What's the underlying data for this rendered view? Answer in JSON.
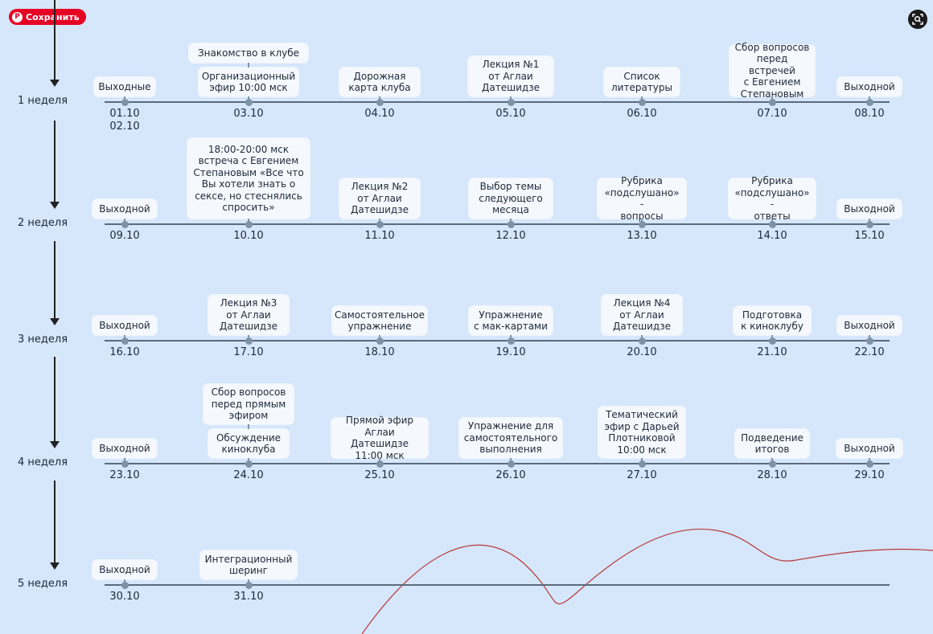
{
  "toolbar": {
    "save_label": "Сохранить",
    "save_icon": "pinterest-icon",
    "lens_icon": "visual-search-icon"
  },
  "colors": {
    "background": "#d6e6fb",
    "card": "#f5f8fd",
    "line": "#5b6b7d",
    "dot": "#7f93a7",
    "save_button": "#e60023",
    "scribble": "#b83a3a"
  },
  "weeks": [
    {
      "label": "1 неделя",
      "days": [
        {
          "date": "01.10\n02.10",
          "events": [
            "Выходные"
          ]
        },
        {
          "date": "03.10",
          "events": [
            "Знакомство в клубе",
            "Организационный\nэфир 10:00 мск"
          ]
        },
        {
          "date": "04.10",
          "events": [
            "Дорожная\nкарта клуба"
          ]
        },
        {
          "date": "05.10",
          "events": [
            "Лекция №1\nот Аглаи\nДатешидзе"
          ]
        },
        {
          "date": "06.10",
          "events": [
            "Список\nлитературы"
          ]
        },
        {
          "date": "07.10",
          "events": [
            "Сбор вопросов\nперед встречей\nс Евгением\nСтепановым"
          ]
        },
        {
          "date": "08.10",
          "events": [
            "Выходной"
          ]
        }
      ]
    },
    {
      "label": "2 неделя",
      "days": [
        {
          "date": "09.10",
          "events": [
            "Выходной"
          ]
        },
        {
          "date": "10.10",
          "events": [
            "18:00-20:00 мск\nвстреча с Евгением\nСтепановым «Все что\nВы хотели знать о\nсексе, но стеснялись\nспросить»"
          ]
        },
        {
          "date": "11.10",
          "events": [
            "Лекция №2\nот Аглаи\nДатешидзе"
          ]
        },
        {
          "date": "12.10",
          "events": [
            "Выбор темы\nследующего\nмесяца"
          ]
        },
        {
          "date": "13.10",
          "events": [
            "Рубрика\n«подслушано» -\nвопросы"
          ]
        },
        {
          "date": "14.10",
          "events": [
            "Рубрика\n«подслушано» -\nответы"
          ]
        },
        {
          "date": "15.10",
          "events": [
            "Выходной"
          ]
        }
      ]
    },
    {
      "label": "3 неделя",
      "days": [
        {
          "date": "16.10",
          "events": [
            "Выходной"
          ]
        },
        {
          "date": "17.10",
          "events": [
            "Лекция №3\nот Аглаи\nДатешидзе"
          ]
        },
        {
          "date": "18.10",
          "events": [
            "Самостоятельное\nупражнение"
          ]
        },
        {
          "date": "19.10",
          "events": [
            "Упражнение\nс мак-картами"
          ]
        },
        {
          "date": "20.10",
          "events": [
            "Лекция №4\nот Аглаи\nДатешидзе"
          ]
        },
        {
          "date": "21.10",
          "events": [
            "Подготовка\nк киноклубу"
          ]
        },
        {
          "date": "22.10",
          "events": [
            "Выходной"
          ]
        }
      ]
    },
    {
      "label": "4 неделя",
      "days": [
        {
          "date": "23.10",
          "events": [
            "Выходной"
          ]
        },
        {
          "date": "24.10",
          "events": [
            "Сбор вопросов\nперед прямым\nэфиром",
            "Обсуждение\nкиноклуба"
          ]
        },
        {
          "date": "25.10",
          "events": [
            "Прямой эфир\nАглаи Датешидзе\n11:00 мск"
          ]
        },
        {
          "date": "26.10",
          "events": [
            "Упражнение для\nсамостоятельного\nвыполнения"
          ]
        },
        {
          "date": "27.10",
          "events": [
            "Тематический\nэфир с Дарьей\nПлотниковой\n10:00 мск"
          ]
        },
        {
          "date": "28.10",
          "events": [
            "Подведение\nитогов"
          ]
        },
        {
          "date": "29.10",
          "events": [
            "Выходной"
          ]
        }
      ]
    },
    {
      "label": "5 неделя",
      "days": [
        {
          "date": "30.10",
          "events": [
            "Выходной"
          ]
        },
        {
          "date": "31.10",
          "events": [
            "Интеграционный\nшеринг"
          ]
        }
      ]
    }
  ]
}
